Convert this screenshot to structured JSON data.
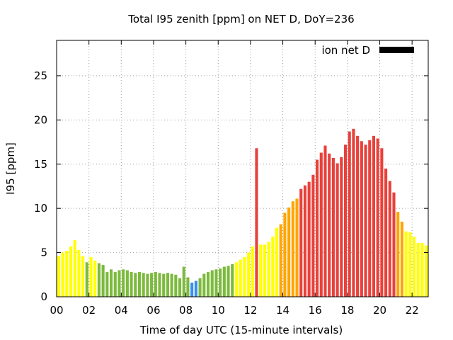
{
  "chart_data": {
    "type": "bar",
    "title": "Total I95 zenith [ppm] on NET D, DoY=236",
    "xlabel": "Time of day UTC (15-minute intervals)",
    "ylabel": "I95 [ppm]",
    "xlim": [
      0,
      23
    ],
    "ylim": [
      0,
      29
    ],
    "xticks": [
      "00",
      "02",
      "04",
      "06",
      "08",
      "10",
      "12",
      "14",
      "16",
      "18",
      "20",
      "22"
    ],
    "xtick_values": [
      0,
      2,
      4,
      6,
      8,
      10,
      12,
      14,
      16,
      18,
      20,
      22
    ],
    "yticks": [
      "0",
      "5",
      "10",
      "15",
      "20",
      "25"
    ],
    "ytick_values": [
      0,
      5,
      10,
      15,
      20,
      25
    ],
    "grid": true,
    "legend": {
      "label": "ion net D",
      "placement": "top-right",
      "color": "#000000"
    },
    "bar_width_hours": 0.18,
    "series": [
      {
        "x": [
          0.125,
          0.375,
          0.625,
          0.875,
          1.125,
          1.375,
          1.625,
          1.875,
          2.125,
          2.375,
          2.625,
          2.875,
          3.125,
          3.375,
          3.625,
          3.875,
          4.125,
          4.375,
          4.625,
          4.875,
          5.125,
          5.375,
          5.625,
          5.875,
          6.125,
          6.375,
          6.625,
          6.875,
          7.125,
          7.375,
          7.625,
          7.875,
          8.125,
          8.375,
          8.625,
          8.875,
          9.125,
          9.375,
          9.625,
          9.875,
          10.125,
          10.375,
          10.625,
          10.875,
          11.125,
          11.375,
          11.625,
          11.875,
          12.125,
          12.375,
          12.625,
          12.875,
          13.125,
          13.375,
          13.625,
          13.875,
          14.125,
          14.375,
          14.625,
          14.875,
          15.125,
          15.375,
          15.625,
          15.875,
          16.125,
          16.375,
          16.625,
          16.875,
          17.125,
          17.375,
          17.625,
          17.875,
          18.125,
          18.375,
          18.625,
          18.875,
          19.125,
          19.375,
          19.625,
          19.875,
          20.125,
          20.375,
          20.625,
          20.875,
          21.125,
          21.375,
          21.625,
          21.875,
          22.125,
          22.375,
          22.625,
          22.875
        ],
        "values": [
          4.6,
          5.0,
          5.2,
          5.7,
          6.4,
          5.3,
          4.6,
          3.9,
          4.5,
          4.1,
          3.8,
          3.6,
          2.8,
          3.1,
          2.8,
          3.0,
          3.1,
          3.0,
          2.8,
          2.7,
          2.8,
          2.7,
          2.6,
          2.7,
          2.8,
          2.7,
          2.6,
          2.7,
          2.6,
          2.5,
          2.1,
          3.4,
          2.2,
          1.6,
          1.8,
          2.1,
          2.6,
          2.8,
          3.0,
          3.1,
          3.2,
          3.4,
          3.5,
          3.7,
          3.9,
          4.2,
          4.5,
          5.0,
          5.7,
          16.8,
          5.9,
          5.9,
          6.2,
          6.8,
          7.8,
          8.2,
          9.5,
          10.1,
          10.8,
          11.1,
          12.2,
          12.6,
          13.0,
          13.8,
          15.5,
          16.3,
          17.1,
          16.2,
          15.7,
          15.1,
          15.8,
          17.2,
          18.7,
          19.0,
          18.2,
          17.6,
          17.2,
          17.7,
          18.2,
          17.9,
          16.8,
          14.5,
          13.1,
          11.8,
          9.6,
          8.5,
          7.4,
          7.3,
          6.8,
          6.1,
          6.1,
          5.8
        ],
        "colors": [
          "#ffff00",
          "#ffff00",
          "#ffff00",
          "#ffff00",
          "#ffff00",
          "#ffff00",
          "#ffff00",
          "#7cba3d",
          "#ffff00",
          "#ffff00",
          "#7cba3d",
          "#7cba3d",
          "#7cba3d",
          "#7cba3d",
          "#7cba3d",
          "#7cba3d",
          "#7cba3d",
          "#7cba3d",
          "#7cba3d",
          "#7cba3d",
          "#7cba3d",
          "#7cba3d",
          "#7cba3d",
          "#7cba3d",
          "#7cba3d",
          "#7cba3d",
          "#7cba3d",
          "#7cba3d",
          "#7cba3d",
          "#7cba3d",
          "#7cba3d",
          "#7cba3d",
          "#7cba3d",
          "#3a8ef0",
          "#3a8ef0",
          "#7cba3d",
          "#7cba3d",
          "#7cba3d",
          "#7cba3d",
          "#7cba3d",
          "#7cba3d",
          "#7cba3d",
          "#7cba3d",
          "#7cba3d",
          "#ffff00",
          "#ffff00",
          "#ffff00",
          "#ffff00",
          "#ffff00",
          "#e8413b",
          "#ffff00",
          "#ffff00",
          "#ffff00",
          "#ffff00",
          "#ffff00",
          "#ffa500",
          "#ffa500",
          "#ffa500",
          "#ffa500",
          "#ffa500",
          "#e8413b",
          "#e8413b",
          "#e8413b",
          "#e8413b",
          "#e8413b",
          "#e8413b",
          "#e8413b",
          "#e8413b",
          "#e8413b",
          "#e8413b",
          "#e8413b",
          "#e8413b",
          "#e8413b",
          "#e8413b",
          "#e8413b",
          "#e8413b",
          "#e8413b",
          "#e8413b",
          "#e8413b",
          "#e8413b",
          "#e8413b",
          "#e8413b",
          "#e8413b",
          "#e8413b",
          "#ffa500",
          "#ffa500",
          "#ffff00",
          "#ffff00",
          "#ffff00",
          "#ffff00",
          "#ffff00",
          "#ffff00"
        ]
      }
    ]
  }
}
